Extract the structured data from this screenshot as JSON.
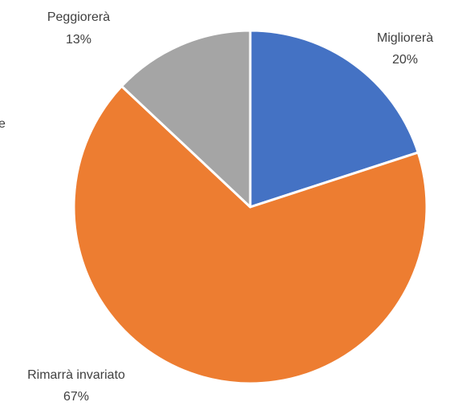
{
  "chart_data": {
    "type": "pie",
    "categories": [
      "Migliorerà",
      "Rimarrà invariato",
      "Peggiorerà"
    ],
    "values": [
      20,
      67,
      13
    ],
    "value_labels": [
      "20%",
      "67%",
      "13%"
    ],
    "colors": [
      "#4472c4",
      "#ed7d31",
      "#a5a5a5"
    ],
    "annotations": [
      "e"
    ]
  }
}
